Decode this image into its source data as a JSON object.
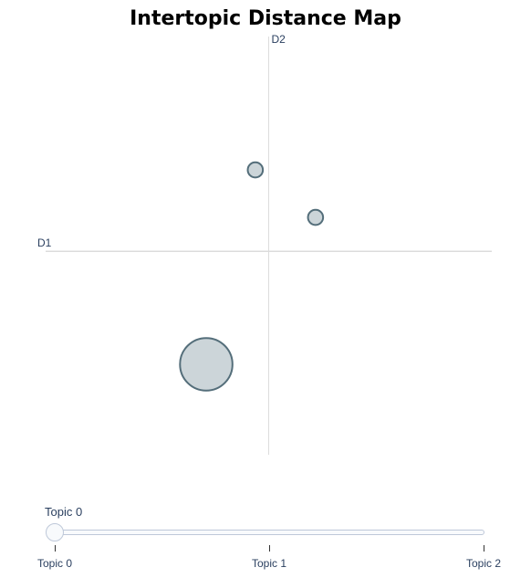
{
  "title": "Intertopic Distance Map",
  "toolbar_color": "#e4e8ef",
  "chart_data": {
    "type": "scatter",
    "title": "Intertopic Distance Map",
    "xlabel": "D1",
    "ylabel": "D2",
    "grid": false,
    "points": [
      {
        "x": -0.6,
        "y": 3.6,
        "size": 1
      },
      {
        "x": 2.1,
        "y": 1.5,
        "size": 1
      },
      {
        "x": -2.8,
        "y": -5.0,
        "size": 12
      }
    ],
    "xlim": [
      -10,
      10
    ],
    "ylim": [
      -9.0,
      9.5
    ],
    "marker_fill": "#b0bec5",
    "marker_stroke": "#546e7a",
    "axis_color": "#dcdcdc"
  },
  "slider": {
    "current_label": "Topic 0",
    "value": 0,
    "steps": [
      "Topic 0",
      "Topic 1",
      "Topic 2"
    ]
  }
}
